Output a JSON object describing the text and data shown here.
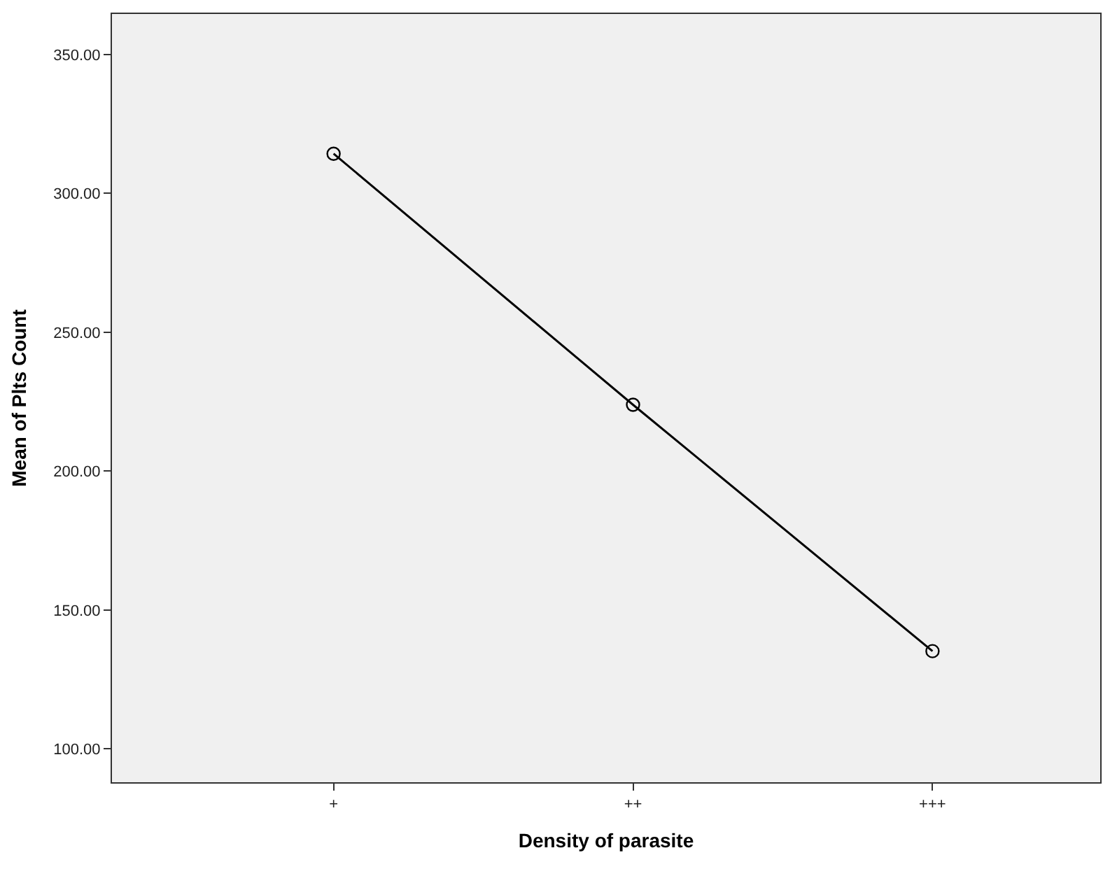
{
  "chart_data": {
    "type": "line",
    "xlabel": "Density of parasite",
    "ylabel": "Mean of Plts Count",
    "categories": [
      "+",
      "++",
      "+++"
    ],
    "series": [
      {
        "color": "#000000",
        "values": [
          314.3,
          223.9,
          135.2
        ]
      }
    ],
    "ylim": [
      88,
      364.6
    ],
    "yticks": [
      {
        "value": 100,
        "label": "100.00"
      },
      {
        "value": 150,
        "label": "150.00"
      },
      {
        "value": 200,
        "label": "200.00"
      },
      {
        "value": 250,
        "label": "250.00"
      },
      {
        "value": 300,
        "label": "300.00"
      },
      {
        "value": 350,
        "label": "350.00"
      }
    ],
    "marker": "circle",
    "line_style": "solid",
    "grid": false,
    "legend": false
  }
}
